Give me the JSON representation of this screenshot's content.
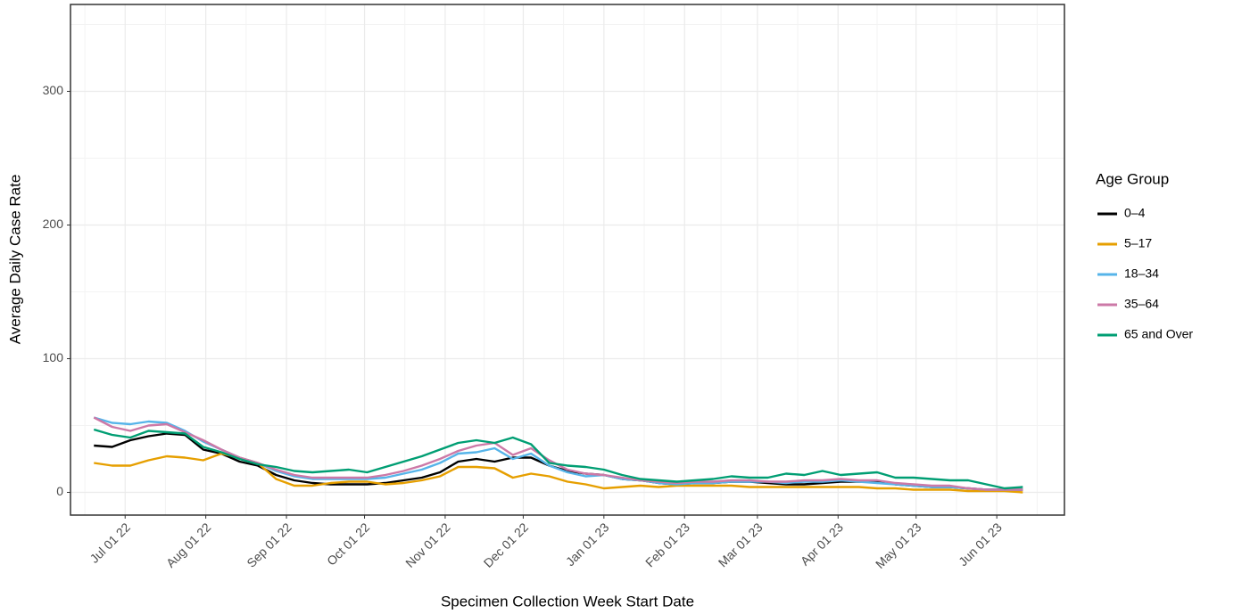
{
  "chart_data": {
    "type": "line",
    "x_label": "Specimen Collection Week Start Date",
    "y_label": "Average Daily Case Rate",
    "legend_title": "Age Group",
    "legend": "right",
    "grid": true,
    "x": [
      "2022-06-19",
      "2022-06-26",
      "2022-07-03",
      "2022-07-10",
      "2022-07-17",
      "2022-07-24",
      "2022-07-31",
      "2022-08-07",
      "2022-08-14",
      "2022-08-21",
      "2022-08-28",
      "2022-09-04",
      "2022-09-11",
      "2022-09-18",
      "2022-09-25",
      "2022-10-02",
      "2022-10-09",
      "2022-10-16",
      "2022-10-23",
      "2022-10-30",
      "2022-11-06",
      "2022-11-13",
      "2022-11-20",
      "2022-11-27",
      "2022-12-04",
      "2022-12-11",
      "2022-12-18",
      "2022-12-25",
      "2023-01-01",
      "2023-01-08",
      "2023-01-15",
      "2023-01-22",
      "2023-01-29",
      "2023-02-05",
      "2023-02-12",
      "2023-02-19",
      "2023-02-26",
      "2023-03-05",
      "2023-03-12",
      "2023-03-19",
      "2023-03-26",
      "2023-04-02",
      "2023-04-09",
      "2023-04-16",
      "2023-04-23",
      "2023-04-30",
      "2023-05-07",
      "2023-05-14",
      "2023-05-21",
      "2023-05-28",
      "2023-06-04",
      "2023-06-11"
    ],
    "xlim": [
      "2022-06-10",
      "2023-06-27"
    ],
    "xticks": [
      {
        "value": "2022-07-01",
        "label": "Jul 01 22"
      },
      {
        "value": "2022-08-01",
        "label": "Aug 01 22"
      },
      {
        "value": "2022-09-01",
        "label": "Sep 01 22"
      },
      {
        "value": "2022-10-01",
        "label": "Oct 01 22"
      },
      {
        "value": "2022-11-01",
        "label": "Nov 01 22"
      },
      {
        "value": "2022-12-01",
        "label": "Dec 01 22"
      },
      {
        "value": "2023-01-01",
        "label": "Jan 01 23"
      },
      {
        "value": "2023-02-01",
        "label": "Feb 01 23"
      },
      {
        "value": "2023-03-01",
        "label": "Mar 01 23"
      },
      {
        "value": "2023-04-01",
        "label": "Apr 01 23"
      },
      {
        "value": "2023-05-01",
        "label": "May 01 23"
      },
      {
        "value": "2023-06-01",
        "label": "Jun 01 23"
      }
    ],
    "ylim": [
      -17,
      365
    ],
    "yticks": [
      0,
      100,
      200,
      300
    ],
    "series": [
      {
        "name": "0–4",
        "color": "#000000",
        "values": [
          35,
          34,
          39,
          42,
          44,
          43,
          32,
          29,
          23,
          20,
          13,
          9,
          7,
          6,
          6,
          6,
          7,
          9,
          11,
          15,
          23,
          25,
          23,
          26,
          26,
          20,
          16,
          14,
          13,
          10,
          9,
          7,
          6,
          7,
          7,
          8,
          8,
          7,
          6,
          6,
          7,
          8,
          8,
          8,
          6,
          5,
          4,
          4,
          3,
          2,
          2,
          2
        ]
      },
      {
        "name": "5–17",
        "color": "#E69F00",
        "values": [
          22,
          20,
          20,
          24,
          27,
          26,
          24,
          29,
          26,
          22,
          10,
          5,
          5,
          7,
          8,
          8,
          6,
          7,
          9,
          12,
          19,
          19,
          18,
          11,
          14,
          12,
          8,
          6,
          3,
          4,
          5,
          4,
          5,
          5,
          5,
          5,
          4,
          4,
          4,
          4,
          4,
          4,
          4,
          3,
          3,
          2,
          2,
          2,
          1,
          1,
          1,
          0
        ]
      },
      {
        "name": "18–34",
        "color": "#56B4E9",
        "values": [
          56,
          52,
          51,
          53,
          52,
          46,
          38,
          32,
          26,
          22,
          16,
          12,
          10,
          10,
          10,
          10,
          11,
          14,
          17,
          22,
          29,
          30,
          33,
          25,
          29,
          20,
          15,
          12,
          13,
          10,
          9,
          7,
          6,
          7,
          7,
          8,
          8,
          8,
          7,
          8,
          8,
          9,
          8,
          7,
          6,
          5,
          4,
          4,
          3,
          2,
          2,
          2
        ]
      },
      {
        "name": "35–64",
        "color": "#CC79A7",
        "values": [
          56,
          49,
          46,
          50,
          51,
          45,
          39,
          32,
          26,
          22,
          17,
          13,
          11,
          11,
          11,
          11,
          13,
          16,
          20,
          25,
          31,
          35,
          37,
          28,
          33,
          24,
          17,
          14,
          13,
          11,
          9,
          8,
          7,
          8,
          8,
          9,
          9,
          8,
          8,
          9,
          9,
          10,
          9,
          9,
          7,
          6,
          5,
          5,
          3,
          2,
          2,
          2
        ]
      },
      {
        "name": "65 and Over",
        "color": "#009E73",
        "values": [
          47,
          43,
          41,
          46,
          45,
          44,
          34,
          30,
          25,
          21,
          19,
          16,
          15,
          16,
          17,
          15,
          19,
          23,
          27,
          32,
          37,
          39,
          37,
          41,
          36,
          22,
          20,
          19,
          17,
          13,
          10,
          9,
          8,
          9,
          10,
          12,
          11,
          11,
          14,
          13,
          16,
          13,
          14,
          15,
          11,
          11,
          10,
          9,
          9,
          6,
          3,
          4
        ]
      }
    ]
  }
}
